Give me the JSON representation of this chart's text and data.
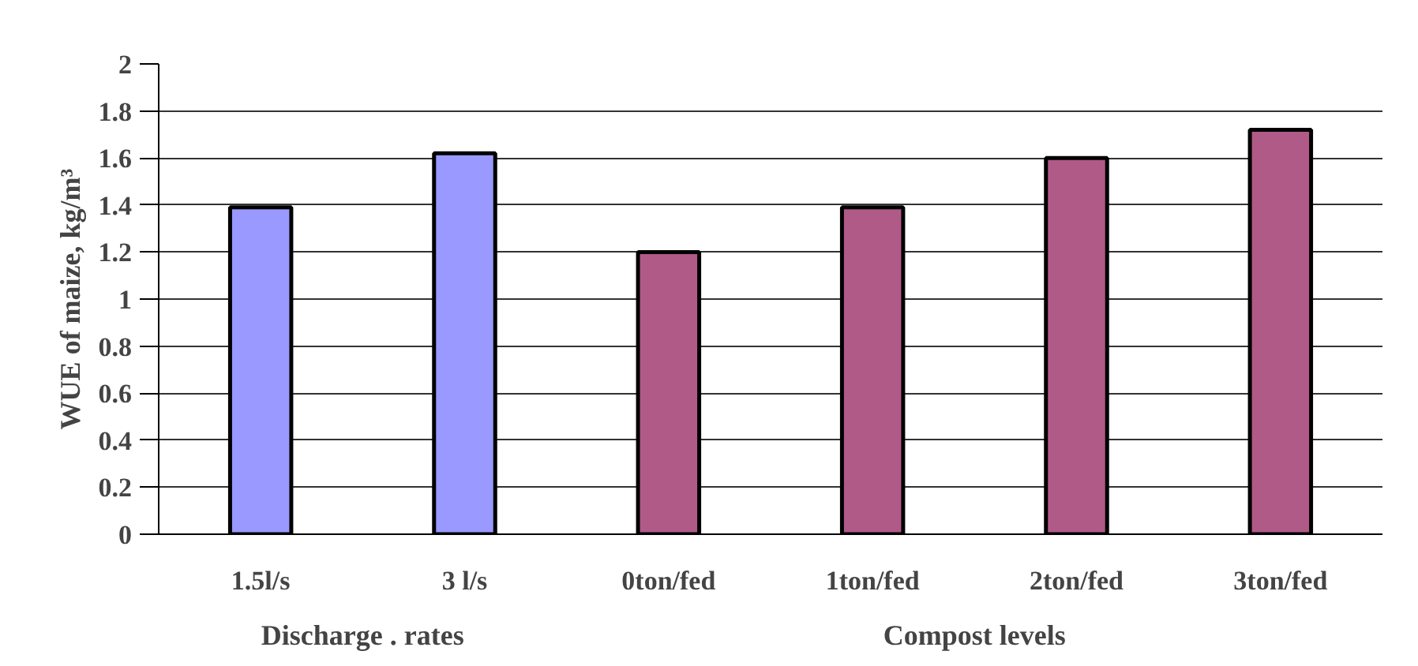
{
  "chart_data": {
    "type": "bar",
    "ylabel": "WUE of maize, kg/m³",
    "categories": [
      "1.5l/s",
      "3 l/s",
      "0ton/fed",
      "1ton/fed",
      "2ton/fed",
      "3ton/fed"
    ],
    "series": [
      {
        "name": "Discharge . rates",
        "color": "#9999ff",
        "values": [
          1.39,
          1.62,
          null,
          null,
          null,
          null
        ]
      },
      {
        "name": "Compost levels",
        "color": "#b05a88",
        "values": [
          null,
          null,
          1.2,
          1.39,
          1.6,
          1.72
        ]
      }
    ],
    "ylim": [
      0,
      2
    ],
    "yticks": [
      0,
      0.2,
      0.4,
      0.6,
      0.8,
      1,
      1.2,
      1.4,
      1.6,
      1.8,
      2
    ],
    "grid": "y"
  }
}
